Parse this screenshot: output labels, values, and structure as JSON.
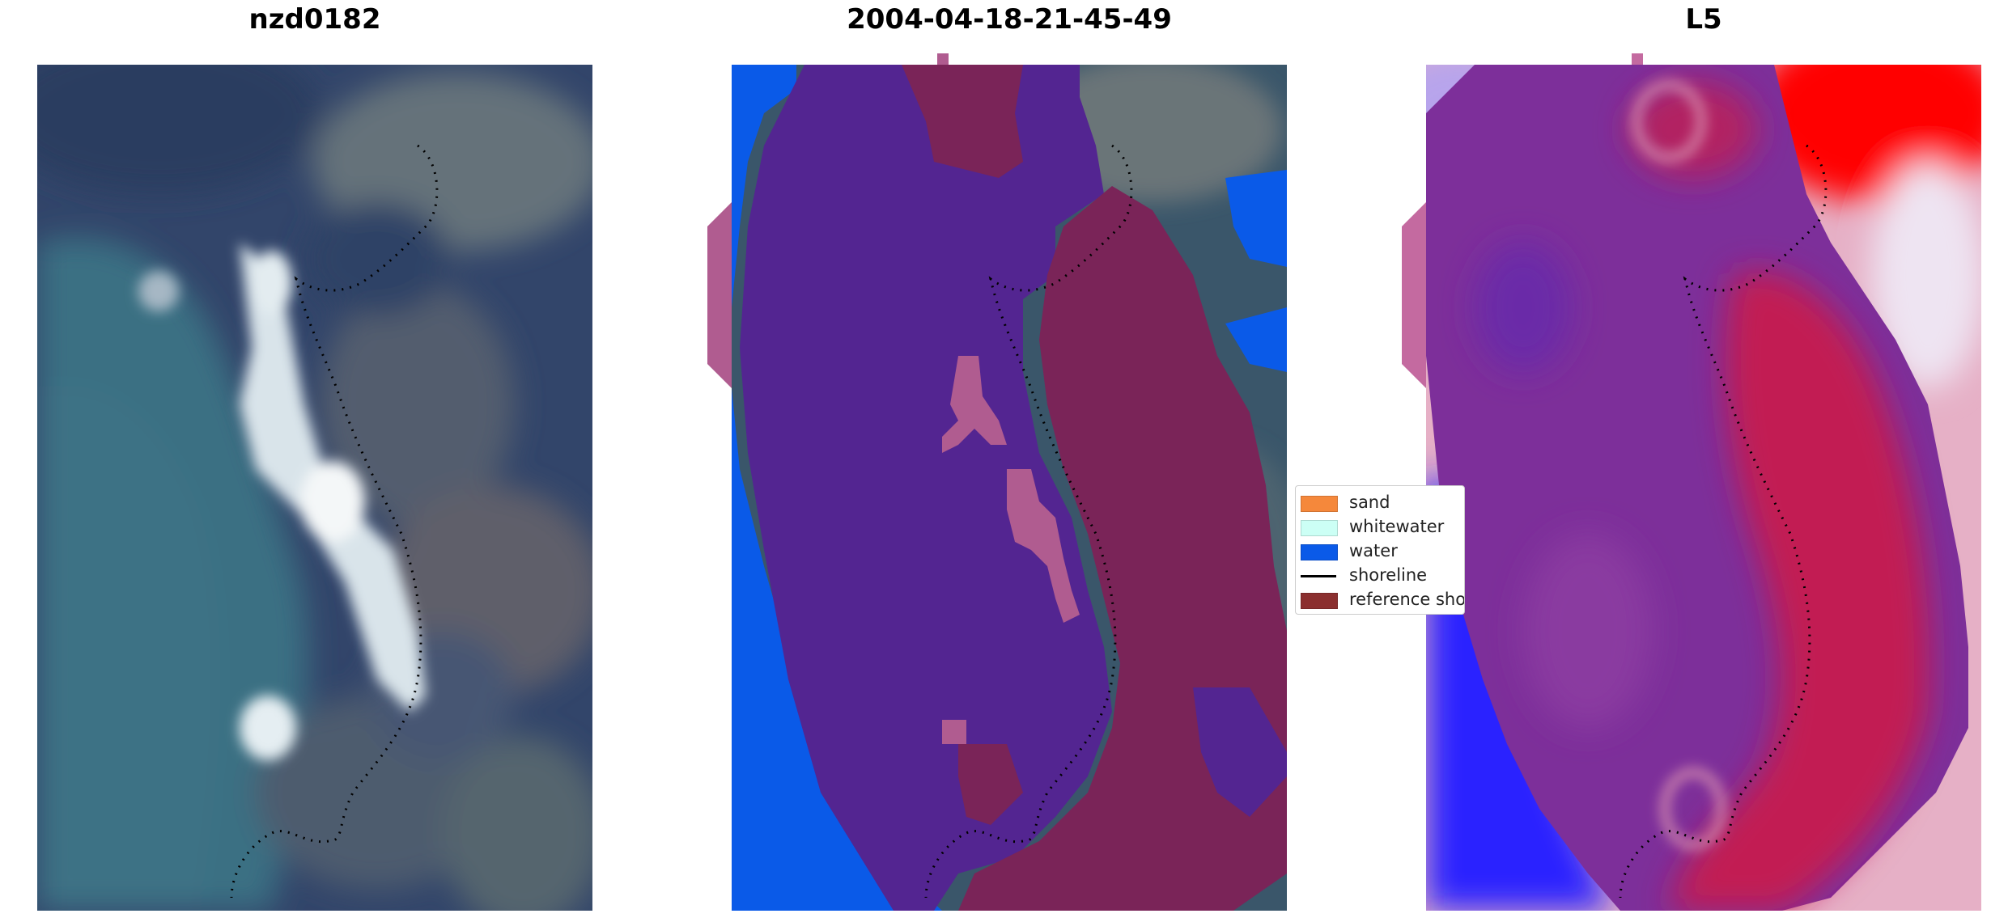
{
  "titles": {
    "panel1": "nzd0182",
    "panel2": "2004-04-18-21-45-49",
    "panel3": "L5"
  },
  "legend": {
    "items": [
      {
        "label": "sand",
        "color": "#f5883b",
        "kind": "patch"
      },
      {
        "label": "whitewater",
        "color": "#ccfff5",
        "kind": "patch"
      },
      {
        "label": "water",
        "color": "#0a5ae8",
        "kind": "patch"
      },
      {
        "label": "shoreline",
        "color": "#000000",
        "kind": "line"
      },
      {
        "label": "reference shoreline",
        "color": "#8b2f2f",
        "kind": "patch"
      }
    ]
  },
  "colors": {
    "deep_water": "#2c3f5f",
    "shallow_water": "#3a7080",
    "whitewater": "#dde8ee",
    "land_green": "#5e6b6a",
    "class_water": "#0a5ae8",
    "class_other": "#532591",
    "class_land": "#7a2458",
    "mndwi_blue": "#1414ff",
    "mndwi_purple": "#6b30a8",
    "mndwi_red": "#d01030",
    "mndwi_bright_red": "#ff0000"
  }
}
